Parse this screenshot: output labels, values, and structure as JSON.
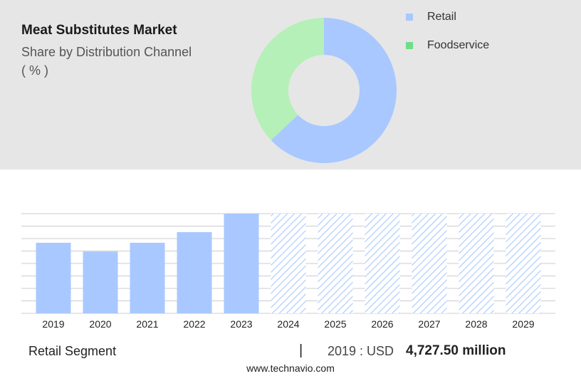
{
  "header": {
    "title": "Meat Substitutes Market",
    "subtitle": "Share by Distribution Channel",
    "unit": "( % )"
  },
  "colors": {
    "retail": "#a8c8ff",
    "foodservice": "#b4f0b8",
    "foodservice_legend": "#6fdd8a",
    "panel": "#e6e6e6",
    "grid": "#cccccc"
  },
  "chart_data": [
    {
      "type": "pie",
      "title": "Share by Distribution Channel",
      "categories": [
        "Retail",
        "Foodservice"
      ],
      "values": [
        63,
        37
      ],
      "colors": [
        "#a8c8ff",
        "#b4f0b8"
      ],
      "legend": "top-right"
    },
    {
      "type": "bar",
      "categories": [
        "2019",
        "2020",
        "2021",
        "2022",
        "2023",
        "2024",
        "2025",
        "2026",
        "2027",
        "2028",
        "2029"
      ],
      "values": [
        8.0,
        7.0,
        8.0,
        9.2,
        11.3,
        11.3,
        11.3,
        11.3,
        11.3,
        11.3,
        11.3
      ],
      "forecast_from": "2024",
      "ylim": [
        0,
        11.3
      ],
      "grid": true
    }
  ],
  "footer": {
    "segment_label": "Retail Segment",
    "separator": "|",
    "year_prefix": "2019 : USD",
    "value": "4,727.50 million"
  },
  "source": "www.technavio.com"
}
